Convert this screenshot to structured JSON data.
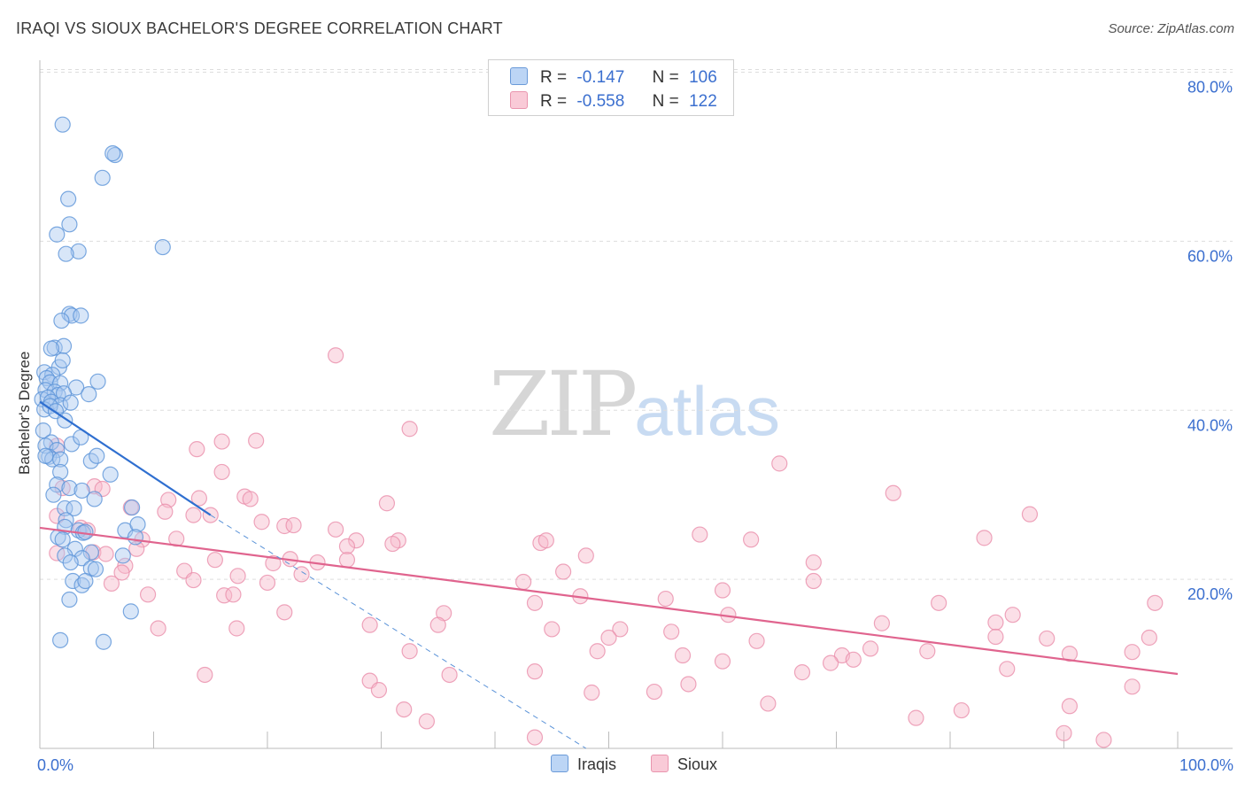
{
  "title": "IRAQI VS SIOUX BACHELOR'S DEGREE CORRELATION CHART",
  "source": "Source: ZipAtlas.com",
  "watermark": {
    "zip": "ZIP",
    "atlas": "atlas"
  },
  "legend": {
    "rows": [
      {
        "r_label": "R =",
        "r_value": "-0.147",
        "n_label": "N =",
        "n_value": "106"
      },
      {
        "r_label": "R =",
        "r_value": "-0.558",
        "n_label": "N =",
        "n_value": "122"
      }
    ]
  },
  "bottom_legend": {
    "iraqis": "Iraqis",
    "sioux": "Sioux"
  },
  "colors": {
    "iraqis_fill": "#a8c8f0",
    "iraqis_stroke": "#5b93d8",
    "iraqis_line": "#2f6fd0",
    "sioux_fill": "#f6b8c9",
    "sioux_stroke": "#ea8fab",
    "sioux_line": "#e0648e",
    "tick_label": "#3b6fcf",
    "grid": "#dddddd"
  },
  "chart_data": {
    "type": "scatter",
    "title": "IRAQI VS SIOUX BACHELOR'S DEGREE CORRELATION CHART",
    "xlabel": "",
    "ylabel": "Bachelor's Degree",
    "xlim": [
      0,
      100
    ],
    "ylim": [
      0,
      80
    ],
    "x_tick_labels": [
      "0.0%",
      "100.0%"
    ],
    "y_ticks": [
      20,
      40,
      60,
      80
    ],
    "y_tick_labels": [
      "20.0%",
      "40.0%",
      "60.0%",
      "80.0%"
    ],
    "grid": true,
    "legend_position": "top-center",
    "series": [
      {
        "name": "Iraqis",
        "r": -0.147,
        "n": 106,
        "trend": {
          "x": [
            0,
            15
          ],
          "y": [
            41.0,
            27.6
          ]
        },
        "trend_extension": {
          "x": [
            15,
            48
          ],
          "y": [
            27.6,
            0
          ]
        },
        "points": [
          [
            2.0,
            73.8
          ],
          [
            6.6,
            70.2
          ],
          [
            6.4,
            70.4
          ],
          [
            5.5,
            67.5
          ],
          [
            2.5,
            65.0
          ],
          [
            2.6,
            62.0
          ],
          [
            1.5,
            60.8
          ],
          [
            3.4,
            58.8
          ],
          [
            2.3,
            58.5
          ],
          [
            10.8,
            59.3
          ],
          [
            2.6,
            51.4
          ],
          [
            2.8,
            51.2
          ],
          [
            3.6,
            51.2
          ],
          [
            1.9,
            50.6
          ],
          [
            1.3,
            47.4
          ],
          [
            2.1,
            47.6
          ],
          [
            1.0,
            47.3
          ],
          [
            1.7,
            45.1
          ],
          [
            2.0,
            45.9
          ],
          [
            0.4,
            44.5
          ],
          [
            1.1,
            44.2
          ],
          [
            5.1,
            43.4
          ],
          [
            0.6,
            43.8
          ],
          [
            0.9,
            43.3
          ],
          [
            1.8,
            43.2
          ],
          [
            3.2,
            42.7
          ],
          [
            0.5,
            42.4
          ],
          [
            1.3,
            42.2
          ],
          [
            1.6,
            41.8
          ],
          [
            2.1,
            42.0
          ],
          [
            4.3,
            41.9
          ],
          [
            0.2,
            41.3
          ],
          [
            0.7,
            41.5
          ],
          [
            1.0,
            41.0
          ],
          [
            1.8,
            40.6
          ],
          [
            2.7,
            40.9
          ],
          [
            0.4,
            40.1
          ],
          [
            0.9,
            40.5
          ],
          [
            1.4,
            39.9
          ],
          [
            2.2,
            38.8
          ],
          [
            0.3,
            37.6
          ],
          [
            1.0,
            36.2
          ],
          [
            0.5,
            35.8
          ],
          [
            1.5,
            35.3
          ],
          [
            0.8,
            34.5
          ],
          [
            1.1,
            34.2
          ],
          [
            0.5,
            34.6
          ],
          [
            1.8,
            34.2
          ],
          [
            2.8,
            36.0
          ],
          [
            3.6,
            36.8
          ],
          [
            4.5,
            34.0
          ],
          [
            5.0,
            34.6
          ],
          [
            6.2,
            32.4
          ],
          [
            1.8,
            32.7
          ],
          [
            1.5,
            31.2
          ],
          [
            2.6,
            30.8
          ],
          [
            3.7,
            30.5
          ],
          [
            1.2,
            30.0
          ],
          [
            4.8,
            29.5
          ],
          [
            2.2,
            28.4
          ],
          [
            3.0,
            28.4
          ],
          [
            8.1,
            28.5
          ],
          [
            2.3,
            27.0
          ],
          [
            2.2,
            26.2
          ],
          [
            3.4,
            25.8
          ],
          [
            3.8,
            25.5
          ],
          [
            4.0,
            25.6
          ],
          [
            7.5,
            25.8
          ],
          [
            8.6,
            26.5
          ],
          [
            8.4,
            25.0
          ],
          [
            1.6,
            25.0
          ],
          [
            2.0,
            24.7
          ],
          [
            3.1,
            23.6
          ],
          [
            4.5,
            23.2
          ],
          [
            2.2,
            22.8
          ],
          [
            3.7,
            22.5
          ],
          [
            7.3,
            22.8
          ],
          [
            2.7,
            22.0
          ],
          [
            4.5,
            21.3
          ],
          [
            4.9,
            21.2
          ],
          [
            2.9,
            19.8
          ],
          [
            3.7,
            19.3
          ],
          [
            4.0,
            19.8
          ],
          [
            2.6,
            17.6
          ],
          [
            8.0,
            16.2
          ],
          [
            1.8,
            12.8
          ],
          [
            5.6,
            12.6
          ]
        ]
      },
      {
        "name": "Sioux",
        "r": -0.558,
        "n": 122,
        "trend": {
          "x": [
            0,
            100
          ],
          "y": [
            26.1,
            8.8
          ]
        },
        "points": [
          [
            26.0,
            46.5
          ],
          [
            32.5,
            37.8
          ],
          [
            16.0,
            36.3
          ],
          [
            19.0,
            36.4
          ],
          [
            13.8,
            35.4
          ],
          [
            1.5,
            35.8
          ],
          [
            65.0,
            33.7
          ],
          [
            16.0,
            32.7
          ],
          [
            4.8,
            31.0
          ],
          [
            2.0,
            30.8
          ],
          [
            5.5,
            30.7
          ],
          [
            14.0,
            29.6
          ],
          [
            18.0,
            29.8
          ],
          [
            18.5,
            29.5
          ],
          [
            11.3,
            29.4
          ],
          [
            75.0,
            30.2
          ],
          [
            30.5,
            29.0
          ],
          [
            8.0,
            28.5
          ],
          [
            11.0,
            28.0
          ],
          [
            15.0,
            27.6
          ],
          [
            13.5,
            27.6
          ],
          [
            1.5,
            27.5
          ],
          [
            87.0,
            27.7
          ],
          [
            19.5,
            26.8
          ],
          [
            21.5,
            26.3
          ],
          [
            22.3,
            26.4
          ],
          [
            26.0,
            25.9
          ],
          [
            3.6,
            26.1
          ],
          [
            4.2,
            25.8
          ],
          [
            58.0,
            25.3
          ],
          [
            83.0,
            24.9
          ],
          [
            27.8,
            24.6
          ],
          [
            9.0,
            24.7
          ],
          [
            12.0,
            24.8
          ],
          [
            31.5,
            24.6
          ],
          [
            62.5,
            24.7
          ],
          [
            27.0,
            23.9
          ],
          [
            31.0,
            24.2
          ],
          [
            44.0,
            24.3
          ],
          [
            44.5,
            24.6
          ],
          [
            8.5,
            23.6
          ],
          [
            1.5,
            23.1
          ],
          [
            4.7,
            23.2
          ],
          [
            5.8,
            23.0
          ],
          [
            48.0,
            22.8
          ],
          [
            15.4,
            22.3
          ],
          [
            22.0,
            22.4
          ],
          [
            24.4,
            22.0
          ],
          [
            27.0,
            22.3
          ],
          [
            20.5,
            21.9
          ],
          [
            68.0,
            22.0
          ],
          [
            7.5,
            21.6
          ],
          [
            12.7,
            21.0
          ],
          [
            7.2,
            20.8
          ],
          [
            46.0,
            20.9
          ],
          [
            17.4,
            20.4
          ],
          [
            23.0,
            20.6
          ],
          [
            13.5,
            19.9
          ],
          [
            20.0,
            19.6
          ],
          [
            42.5,
            19.7
          ],
          [
            68.0,
            19.8
          ],
          [
            6.3,
            19.5
          ],
          [
            60.0,
            18.7
          ],
          [
            9.5,
            18.2
          ],
          [
            16.2,
            18.1
          ],
          [
            17.0,
            18.2
          ],
          [
            47.5,
            18.0
          ],
          [
            55.0,
            17.7
          ],
          [
            43.5,
            17.2
          ],
          [
            79.0,
            17.2
          ],
          [
            98.0,
            17.2
          ],
          [
            21.5,
            16.1
          ],
          [
            35.5,
            16.0
          ],
          [
            60.5,
            15.8
          ],
          [
            85.5,
            15.8
          ],
          [
            10.4,
            14.2
          ],
          [
            17.3,
            14.2
          ],
          [
            29.0,
            14.6
          ],
          [
            35.0,
            14.6
          ],
          [
            45.0,
            14.1
          ],
          [
            51.0,
            14.1
          ],
          [
            55.5,
            13.8
          ],
          [
            74.0,
            14.8
          ],
          [
            84.0,
            14.9
          ],
          [
            84.0,
            13.2
          ],
          [
            88.5,
            13.0
          ],
          [
            97.5,
            13.1
          ],
          [
            50.0,
            13.1
          ],
          [
            63.0,
            12.7
          ],
          [
            73.0,
            11.8
          ],
          [
            78.0,
            11.5
          ],
          [
            32.5,
            11.5
          ],
          [
            49.0,
            11.5
          ],
          [
            56.5,
            11.0
          ],
          [
            90.5,
            11.2
          ],
          [
            96.0,
            11.4
          ],
          [
            70.5,
            11.0
          ],
          [
            71.5,
            10.5
          ],
          [
            69.5,
            10.1
          ],
          [
            60.0,
            10.3
          ],
          [
            85.0,
            9.4
          ],
          [
            67.0,
            9.0
          ],
          [
            43.5,
            9.1
          ],
          [
            36.0,
            8.7
          ],
          [
            14.5,
            8.7
          ],
          [
            29.0,
            8.0
          ],
          [
            57.0,
            7.6
          ],
          [
            96.0,
            7.3
          ],
          [
            29.8,
            6.9
          ],
          [
            48.5,
            6.6
          ],
          [
            54.0,
            6.7
          ],
          [
            64.0,
            5.3
          ],
          [
            81.0,
            4.5
          ],
          [
            32.0,
            4.6
          ],
          [
            90.5,
            5.0
          ],
          [
            77.0,
            3.6
          ],
          [
            34.0,
            3.2
          ],
          [
            90.0,
            1.8
          ],
          [
            43.5,
            1.3
          ],
          [
            93.5,
            1.0
          ]
        ]
      }
    ]
  }
}
